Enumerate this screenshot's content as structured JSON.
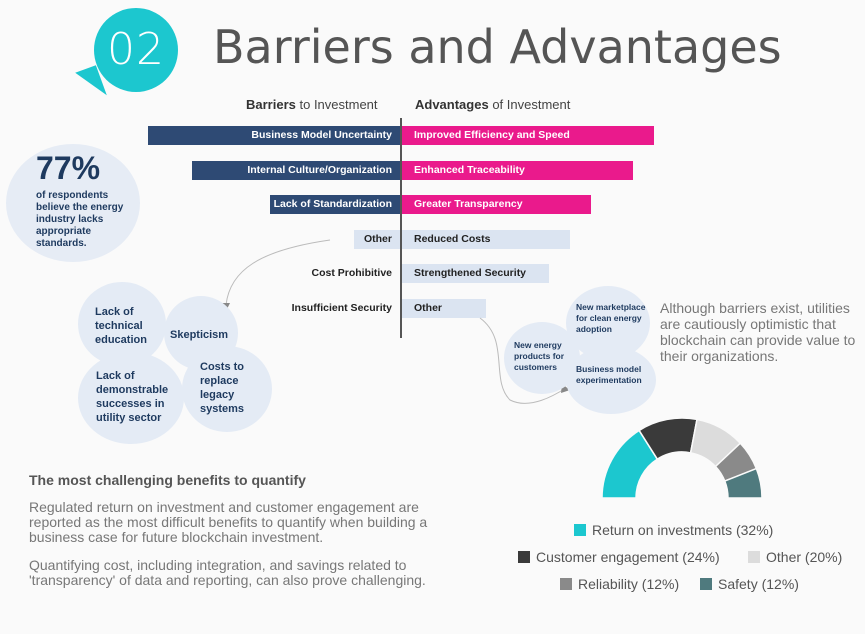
{
  "header": {
    "number": "02",
    "title": "Barriers and Advantages"
  },
  "columns": {
    "barriers_bold": "Barriers",
    "barriers_rest": " to Investment",
    "advantages_bold": "Advantages",
    "advantages_rest": " of Investment"
  },
  "stat": {
    "value": "77%",
    "text": "of respondents believe the energy industry lacks appropriate standards."
  },
  "barrier_bubbles": {
    "b1": "Lack of technical education",
    "b2": "Skepticism",
    "b3": "Lack of demonstrable successes in utility sector",
    "b4": "Costs to replace legacy systems"
  },
  "advantage_bubbles": {
    "a1": "New energy products for customers",
    "a2": "New marketplace for clean energy adoption",
    "a3": "Business model experimentation"
  },
  "side_note": "Although barriers exist, utilities are cautiously optimistic  that blockchain can provide value to their organizations.",
  "section": {
    "heading": "The most challenging benefits to quantify",
    "para1": "Regulated return on investment and customer engagement are reported as the most difficult benefits to quantify when building a business case for future blockchain investment.",
    "para2": "Quantifying cost, including integration, and savings related to 'transparency' of data and reporting, can also prove challenging."
  },
  "colors": {
    "navy": "#2e4a74",
    "magenta": "#ea1a8c",
    "light": "#dbe4f1",
    "teal": "#1cc7cf"
  },
  "chart_data": [
    {
      "type": "bar",
      "orientation": "horizontal-diverging",
      "series": [
        {
          "name": "Barriers to Investment",
          "categories": [
            "Business Model Uncertainty",
            "Internal Culture/Organization",
            "Lack of Standardization",
            "Other",
            "Cost Prohibitive",
            "Insufficient Security"
          ],
          "values": [
            252,
            208,
            130,
            46,
            0,
            0
          ],
          "highlight": [
            true,
            true,
            true,
            false,
            false,
            false
          ]
        },
        {
          "name": "Advantages of Investment",
          "categories": [
            "Improved Efficiency and Speed",
            "Enhanced Traceability",
            "Greater Transparency",
            "Reduced Costs",
            "Strengthened Security",
            "Other"
          ],
          "values": [
            252,
            231,
            189,
            168,
            147,
            84
          ],
          "highlight": [
            true,
            true,
            true,
            false,
            false,
            false
          ]
        }
      ]
    },
    {
      "type": "pie",
      "style": "semi-donut",
      "slices": [
        {
          "label": "Return on investments (32%)",
          "value": 32,
          "color": "#1cc7cf"
        },
        {
          "label": "Customer engagement (24%)",
          "value": 24,
          "color": "#3a3a3a"
        },
        {
          "label": "Other (20%)",
          "value": 20,
          "color": "#dcdcdc"
        },
        {
          "label": "Reliability (12%)",
          "value": 12,
          "color": "#8a8a8a"
        },
        {
          "label": "Safety (12%)",
          "value": 12,
          "color": "#4f7a7e"
        }
      ]
    }
  ]
}
